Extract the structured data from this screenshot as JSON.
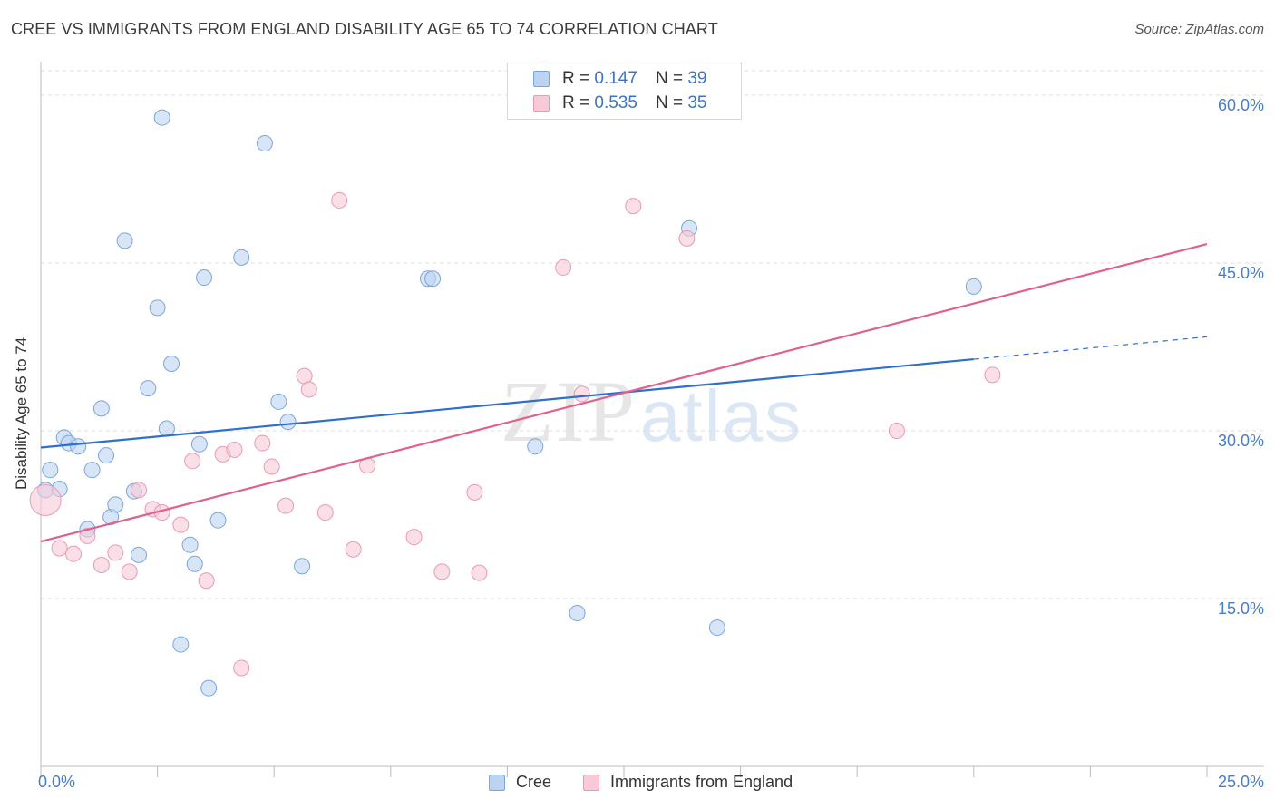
{
  "title": "CREE VS IMMIGRANTS FROM ENGLAND DISABILITY AGE 65 TO 74 CORRELATION CHART",
  "source": "Source: ZipAtlas.com",
  "watermark": {
    "zip": "ZIP",
    "atlas": "atlas"
  },
  "legend_top": {
    "rows": [
      {
        "r_label": "R =",
        "r_value": "0.147",
        "n_label": "N =",
        "n_value": "39"
      },
      {
        "r_label": "R =",
        "r_value": "0.535",
        "n_label": "N =",
        "n_value": "35"
      }
    ]
  },
  "legend_bottom": [
    {
      "label": "Cree"
    },
    {
      "label": "Immigrants from England"
    }
  ],
  "colors": {
    "cree_fill": "#bcd4f2",
    "cree_stroke": "#7aa6dd",
    "cree_line": "#2f6fcf",
    "eng_fill": "#f8c9d7",
    "eng_stroke": "#e99ab3",
    "eng_line": "#e0608e",
    "tick_label": "#4a7cc7",
    "grid": "#dddddd"
  },
  "chart_data": {
    "type": "scatter",
    "title": "CREE VS IMMIGRANTS FROM ENGLAND DISABILITY AGE 65 TO 74 CORRELATION CHART",
    "xlabel": "",
    "ylabel": "Disability Age 65 to 74",
    "xlim": [
      0,
      25
    ],
    "ylim": [
      0,
      63
    ],
    "x_tick_labels": {
      "min": "0.0%",
      "max": "25.0%"
    },
    "y_ticks": [
      {
        "value": 15,
        "label": "15.0%"
      },
      {
        "value": 30,
        "label": "30.0%"
      },
      {
        "value": 45,
        "label": "45.0%"
      },
      {
        "value": 60,
        "label": "60.0%"
      }
    ],
    "grid": true,
    "series": [
      {
        "name": "Cree",
        "trend": {
          "x0": 0,
          "y0": 28.5,
          "x1": 20,
          "y1": 36.4,
          "dash_to_x": 25,
          "dash_to_y": 38.4
        },
        "points": [
          [
            0.1,
            24.7
          ],
          [
            0.2,
            26.5
          ],
          [
            0.4,
            24.8
          ],
          [
            0.5,
            29.4
          ],
          [
            0.6,
            28.9
          ],
          [
            0.8,
            28.6
          ],
          [
            1.0,
            21.2
          ],
          [
            1.1,
            26.5
          ],
          [
            1.3,
            32.0
          ],
          [
            1.4,
            27.8
          ],
          [
            1.5,
            22.3
          ],
          [
            1.6,
            23.4
          ],
          [
            1.8,
            47.0
          ],
          [
            2.0,
            24.6
          ],
          [
            2.1,
            18.9
          ],
          [
            2.3,
            33.8
          ],
          [
            2.5,
            41.0
          ],
          [
            2.6,
            58.0
          ],
          [
            2.7,
            30.2
          ],
          [
            2.8,
            36.0
          ],
          [
            3.0,
            10.9
          ],
          [
            3.2,
            19.8
          ],
          [
            3.3,
            18.1
          ],
          [
            3.4,
            28.8
          ],
          [
            3.5,
            43.7
          ],
          [
            3.6,
            7.0
          ],
          [
            3.8,
            22.0
          ],
          [
            4.3,
            45.5
          ],
          [
            4.8,
            55.7
          ],
          [
            5.1,
            32.6
          ],
          [
            5.3,
            30.8
          ],
          [
            5.6,
            17.9
          ],
          [
            8.3,
            43.6
          ],
          [
            8.4,
            43.6
          ],
          [
            10.6,
            28.6
          ],
          [
            11.5,
            13.7
          ],
          [
            13.9,
            48.1
          ],
          [
            14.5,
            12.4
          ],
          [
            20.0,
            42.9
          ]
        ]
      },
      {
        "name": "Immigrants from England",
        "trend": {
          "x0": 0,
          "y0": 20.1,
          "x1": 25,
          "y1": 46.7
        },
        "points": [
          [
            0.1,
            23.8
          ],
          [
            0.4,
            19.5
          ],
          [
            0.7,
            19.0
          ],
          [
            1.0,
            20.6
          ],
          [
            1.3,
            18.0
          ],
          [
            1.6,
            19.1
          ],
          [
            1.9,
            17.4
          ],
          [
            2.1,
            24.7
          ],
          [
            2.4,
            23.0
          ],
          [
            2.6,
            22.7
          ],
          [
            3.0,
            21.6
          ],
          [
            3.25,
            27.3
          ],
          [
            3.55,
            16.6
          ],
          [
            3.9,
            27.9
          ],
          [
            4.15,
            28.3
          ],
          [
            4.3,
            8.8
          ],
          [
            4.75,
            28.9
          ],
          [
            4.95,
            26.8
          ],
          [
            5.25,
            23.3
          ],
          [
            5.65,
            34.9
          ],
          [
            5.75,
            33.7
          ],
          [
            6.1,
            22.7
          ],
          [
            6.4,
            50.6
          ],
          [
            6.7,
            19.4
          ],
          [
            7.0,
            26.9
          ],
          [
            8.0,
            20.5
          ],
          [
            8.6,
            17.4
          ],
          [
            9.3,
            24.5
          ],
          [
            9.4,
            17.3
          ],
          [
            11.2,
            44.6
          ],
          [
            11.6,
            33.3
          ],
          [
            12.7,
            50.1
          ],
          [
            13.85,
            47.2
          ],
          [
            18.35,
            30.0
          ],
          [
            20.4,
            35.0
          ]
        ]
      }
    ]
  }
}
